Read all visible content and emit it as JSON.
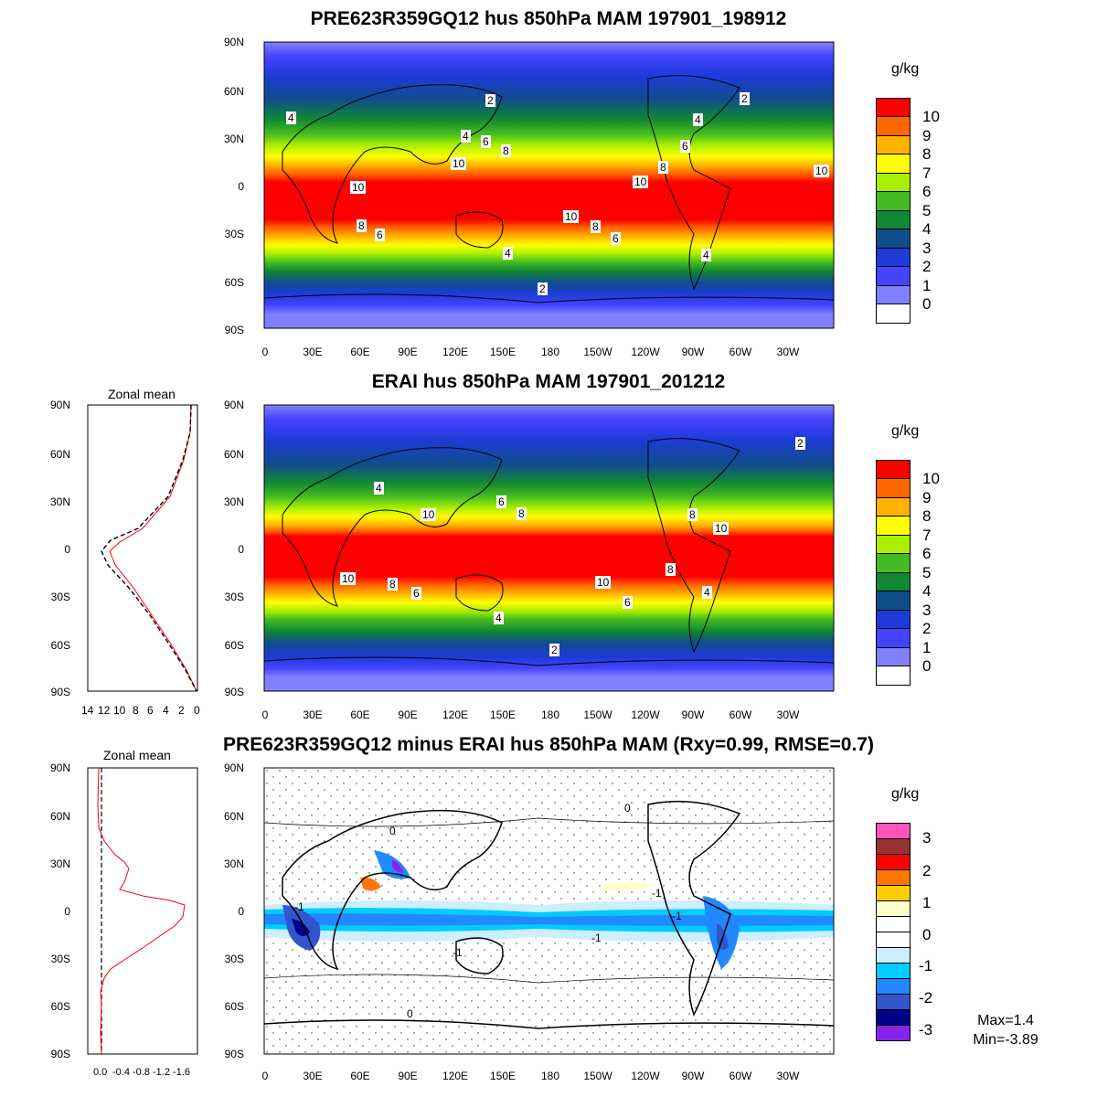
{
  "panels": [
    {
      "title": "PRE623R359GQ12 hus 850hPa MAM 197901_198912",
      "unit": "g/kg",
      "colorbar_labels": [
        "10",
        "9",
        "8",
        "7",
        "6",
        "5",
        "4",
        "3",
        "2",
        "1",
        "0"
      ],
      "colorbar_colors": [
        "#ff0000",
        "#ff6600",
        "#ffb300",
        "#ffff00",
        "#aaee00",
        "#44bb22",
        "#118833",
        "#104e8b",
        "#1e3ad8",
        "#4444ff",
        "#8080ff",
        "#ffffff"
      ],
      "contour_labels": [
        "10",
        "10",
        "10",
        "10",
        "8",
        "8",
        "8",
        "8",
        "6",
        "6",
        "6",
        "6",
        "4",
        "4",
        "4",
        "4",
        "4",
        "2",
        "2",
        "2",
        "10"
      ]
    },
    {
      "title": "ERAI hus 850hPa MAM 197901_201212",
      "unit": "g/kg",
      "zonal_title": "Zonal mean",
      "colorbar_labels": [
        "10",
        "9",
        "8",
        "7",
        "6",
        "5",
        "4",
        "3",
        "2",
        "1",
        "0"
      ],
      "contour_labels": [
        "10",
        "10",
        "10",
        "10",
        "8",
        "8",
        "8",
        "6",
        "6",
        "6",
        "4",
        "4",
        "4",
        "2",
        "2",
        "8"
      ]
    },
    {
      "title": "PRE623R359GQ12 minus ERAI hus 850hPa MAM (Rxy=0.99, RMSE=0.7)",
      "unit": "g/kg",
      "zonal_title": "Zonal mean",
      "colorbar_labels": [
        "3",
        "2",
        "1",
        "0",
        "-1",
        "-2",
        "-3"
      ],
      "colorbar_colors": [
        "#ff55bb",
        "#993333",
        "#ff0000",
        "#ff7700",
        "#ffcc00",
        "#ffffcc",
        "#ffffff",
        "#ffffff",
        "#cceeff",
        "#00ccff",
        "#2288ff",
        "#3355cc",
        "#000088",
        "#8822ee"
      ],
      "contour_labels": [
        "0",
        "0",
        "0",
        "-1",
        "-1",
        "-1",
        "-1",
        "-1"
      ],
      "max_label": "Max=1.4",
      "min_label": "Min=-3.89"
    }
  ],
  "lat_ticks": [
    "90N",
    "60N",
    "30N",
    "0",
    "30S",
    "60S",
    "90S"
  ],
  "lon_ticks": [
    "0",
    "30E",
    "60E",
    "90E",
    "120E",
    "150E",
    "180",
    "150W",
    "120W",
    "90W",
    "60W",
    "30W"
  ],
  "zonal_ticks_abs": [
    "14",
    "12",
    "10",
    "8",
    "6",
    "4",
    "2",
    "0"
  ],
  "zonal_ticks_diff": [
    "0.0",
    "-0.4",
    "-0.8",
    "-1.2",
    "-1.6"
  ]
}
